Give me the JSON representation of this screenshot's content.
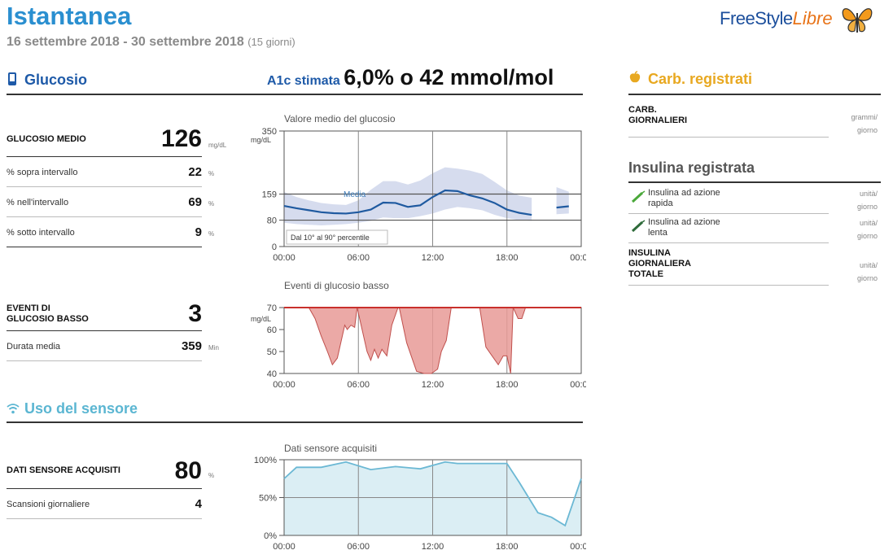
{
  "header": {
    "title": "Istantanea",
    "date_range": "16 settembre 2018 - 30 settembre 2018",
    "days": "(15 giorni)",
    "logo_freestyle": "FreeStyle",
    "logo_libre": "Libre"
  },
  "glucose": {
    "section_title": "Glucosio",
    "a1c_label": "A1c stimata",
    "a1c_value": "6,0% o 42 mmol/mol",
    "avg_label": "GLUCOSIO MEDIO",
    "avg_value": "126",
    "avg_unit": "mg/dL",
    "rows": [
      {
        "label": "% sopra intervallo",
        "value": "22",
        "unit": "%"
      },
      {
        "label": "% nell'intervallo",
        "value": "69",
        "unit": "%"
      },
      {
        "label": "% sotto intervallo",
        "value": "9",
        "unit": "%"
      }
    ],
    "low_events_label_1": "EVENTI DI",
    "low_events_label_2": "GLUCOSIO BASSO",
    "low_events_value": "3",
    "avg_duration_label": "Durata media",
    "avg_duration_value": "359",
    "avg_duration_unit": "Min"
  },
  "sensor": {
    "section_title": "Uso del sensore",
    "acquired_label": "DATI SENSORE ACQUISITI",
    "acquired_value": "80",
    "acquired_unit": "%",
    "scans_label": "Scansioni giornaliere",
    "scans_value": "4"
  },
  "carbs": {
    "section_title": "Carb. registrati",
    "daily_label_1": "CARB.",
    "daily_label_2": "GIORNALIERI",
    "daily_unit_1": "grammi/",
    "daily_unit_2": "giorno"
  },
  "insulin": {
    "section_title": "Insulina registrata",
    "rapid_1": "Insulina ad azione",
    "rapid_2": "rapida",
    "slow_1": "Insulina ad azione",
    "slow_2": "lenta",
    "total_1": "INSULINA",
    "total_2": "GIORNALIERA",
    "total_3": "TOTALE",
    "unit_1": "unità/",
    "unit_2": "giorno"
  },
  "chart_data": [
    {
      "type": "line",
      "title": "Valore medio del glucosio",
      "ylabel": "mg/dL",
      "x_ticks": [
        "00:00",
        "06:00",
        "12:00",
        "18:00",
        "00:00"
      ],
      "y_ticks": [
        0,
        80,
        159,
        350
      ],
      "ylim": [
        0,
        350
      ],
      "target_lines": [
        80,
        159
      ],
      "median_label": "Media",
      "band_label": "Dal 10° al 90° percentile",
      "x": [
        0,
        1,
        2,
        3,
        4,
        5,
        6,
        7,
        8,
        9,
        10,
        11,
        12,
        13,
        14,
        15,
        16,
        17,
        18,
        19,
        20,
        21,
        22,
        23
      ],
      "series": [
        {
          "name": "Media",
          "values": [
            123,
            116,
            110,
            104,
            101,
            100,
            104,
            112,
            133,
            132,
            120,
            125,
            150,
            170,
            168,
            155,
            146,
            132,
            112,
            102,
            96,
            null,
            118,
            122
          ]
        },
        {
          "name": "p10",
          "values": [
            72,
            68,
            66,
            64,
            66,
            68,
            72,
            78,
            88,
            86,
            86,
            92,
            100,
            112,
            120,
            116,
            110,
            96,
            86,
            80,
            78,
            null,
            98,
            100
          ]
        },
        {
          "name": "p90",
          "values": [
            165,
            150,
            140,
            132,
            128,
            126,
            140,
            172,
            198,
            198,
            188,
            200,
            222,
            240,
            236,
            230,
            220,
            196,
            170,
            154,
            148,
            null,
            180,
            166
          ]
        }
      ],
      "grid": true
    },
    {
      "type": "area",
      "title": "Eventi di glucosio basso",
      "ylabel": "mg/dL",
      "x_ticks": [
        "00:00",
        "06:00",
        "12:00",
        "18:00",
        "00:00"
      ],
      "y_ticks": [
        40,
        50,
        60,
        70
      ],
      "ylim": [
        40,
        70
      ],
      "threshold": 70,
      "events": [
        {
          "x": [
            2.0,
            2.5,
            3.0,
            3.5,
            3.9,
            4.3,
            4.9,
            5.1,
            5.4,
            5.7,
            5.9
          ],
          "y": [
            70,
            65,
            57,
            50,
            44,
            47,
            62,
            60,
            62,
            61,
            70
          ]
        },
        {
          "x": [
            5.9,
            6.3,
            6.7,
            7.0,
            7.3,
            7.6,
            7.9,
            8.3,
            8.7,
            9.2
          ],
          "y": [
            70,
            60,
            50,
            46,
            51,
            47,
            51,
            48,
            62,
            70
          ]
        },
        {
          "x": [
            9.3,
            9.9,
            10.7,
            11.3,
            11.9,
            12.4,
            12.7,
            13.1,
            13.5
          ],
          "y": [
            70,
            54,
            41,
            40,
            40,
            42,
            50,
            55,
            70
          ]
        },
        {
          "x": [
            15.8,
            16.3,
            16.8,
            17.3,
            17.7,
            18.0,
            18.3,
            18.5
          ],
          "y": [
            70,
            52,
            48,
            44,
            48,
            48,
            40,
            70
          ]
        },
        {
          "x": [
            18.5,
            18.9,
            19.2,
            19.5
          ],
          "y": [
            70,
            65,
            65,
            70
          ]
        }
      ],
      "grid": true
    },
    {
      "type": "area",
      "title": "Dati sensore acquisiti",
      "x_ticks": [
        "00:00",
        "06:00",
        "12:00",
        "18:00",
        "00:00"
      ],
      "y_ticks": [
        "0%",
        "50%",
        "100%"
      ],
      "ylim": [
        0,
        100
      ],
      "x": [
        0,
        1,
        3,
        5,
        7,
        9,
        11,
        13,
        14,
        17,
        18,
        19,
        20.5,
        21.6,
        22.7,
        24
      ],
      "values": [
        75,
        90,
        90,
        97,
        87,
        91,
        88,
        97,
        95,
        95,
        95,
        70,
        30,
        24,
        13,
        75
      ],
      "grid": true
    }
  ]
}
